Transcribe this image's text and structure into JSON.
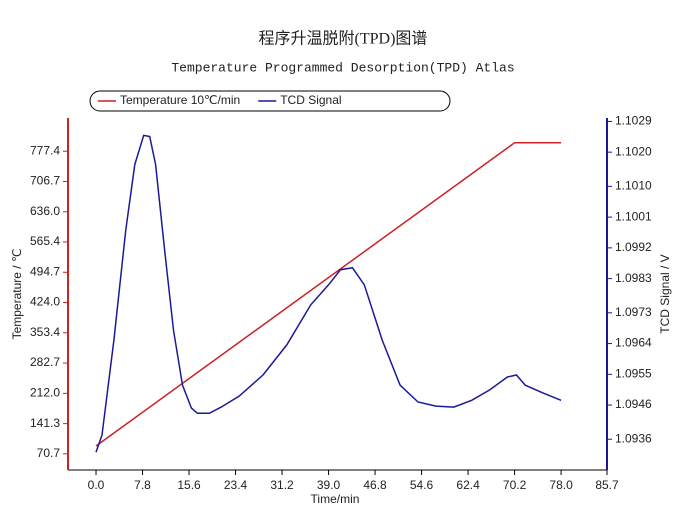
{
  "chart_data": {
    "type": "line",
    "title": "程序升温脱附(TPD)图谱",
    "subtitle": "Temperature Programmed Desorption(TPD) Atlas",
    "x_label": "Time/min",
    "y_label": "Temperature / ℃",
    "y2_label": "TCD Signal / V",
    "xlim": [
      -4.7,
      85.7
    ],
    "xticks": [
      {
        "value": 0,
        "label": "0.0"
      },
      7.8,
      15.6,
      23.4,
      31.2,
      {
        "value": 39,
        "label": "39.0"
      },
      46.8,
      54.6,
      62.4,
      70.2,
      {
        "value": 78,
        "label": "78.0"
      },
      85.7
    ],
    "ylim": [
      33,
      855
    ],
    "yticks": [
      70.7,
      141.3,
      {
        "value": 212,
        "label": "212.0"
      },
      282.7,
      353.4,
      {
        "value": 424,
        "label": "424.0"
      },
      494.7,
      565.4,
      {
        "value": 636,
        "label": "636.0"
      },
      706.7,
      777.4
    ],
    "y2lim": [
      1.0927,
      1.103
    ],
    "y2ticks": [
      1.0936,
      1.0946,
      1.0955,
      1.0964,
      1.0973,
      1.0983,
      1.0992,
      1.1001,
      {
        "value": 1.101,
        "label": "1.1010"
      },
      {
        "value": 1.102,
        "label": "1.1020"
      },
      1.1029
    ],
    "legend": "top",
    "series": [
      {
        "name": "Temperature 10℃/min",
        "color": "#cc2222",
        "axis": "y",
        "x": [
          0,
          70.2,
          78
        ],
        "values": [
          89,
          797,
          797
        ]
      },
      {
        "name": "TCD Signal",
        "color": "#1a1a99",
        "axis": "y2",
        "x": [
          0,
          1,
          3,
          5,
          6.5,
          8,
          9,
          10,
          11.5,
          13,
          14.5,
          16,
          17,
          19,
          21,
          24,
          28,
          32,
          36,
          39,
          41,
          43,
          45,
          48,
          51,
          54,
          57,
          60,
          63,
          66,
          69,
          70.5,
          72,
          75,
          78
        ],
        "values": [
          1.09322,
          1.09372,
          1.0965,
          1.09973,
          1.10164,
          1.10249,
          1.10246,
          1.10164,
          1.09914,
          1.09679,
          1.09518,
          1.09451,
          1.09436,
          1.09436,
          1.09454,
          1.09486,
          1.09548,
          1.09636,
          1.09753,
          1.09812,
          1.09856,
          1.09862,
          1.09812,
          1.0965,
          1.09518,
          1.09469,
          1.09457,
          1.09454,
          1.09474,
          1.09504,
          1.09542,
          1.09548,
          1.09518,
          1.09495,
          1.09474
        ]
      }
    ]
  }
}
